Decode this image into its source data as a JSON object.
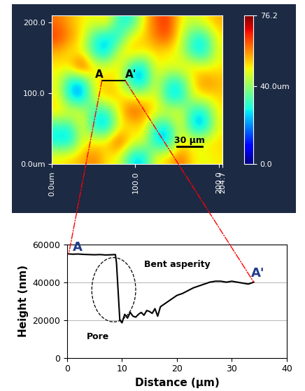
{
  "chart_data": [
    {
      "type": "heatmap",
      "cells": [
        [
          60,
          55,
          50,
          48,
          52,
          30,
          28,
          50,
          62,
          66,
          50,
          45,
          50,
          55
        ],
        [
          65,
          58,
          50,
          30,
          25,
          28,
          50,
          52,
          60,
          64,
          48,
          30,
          28,
          50
        ],
        [
          55,
          50,
          48,
          28,
          22,
          48,
          55,
          50,
          52,
          50,
          46,
          28,
          25,
          48
        ],
        [
          50,
          52,
          70,
          50,
          48,
          52,
          28,
          24,
          50,
          48,
          50,
          52,
          48,
          50
        ],
        [
          48,
          25,
          22,
          50,
          52,
          50,
          26,
          22,
          48,
          30,
          28,
          50,
          60,
          55
        ],
        [
          50,
          24,
          20,
          48,
          55,
          52,
          50,
          48,
          50,
          26,
          24,
          48,
          50,
          52
        ],
        [
          52,
          50,
          48,
          30,
          28,
          50,
          64,
          60,
          50,
          48,
          50,
          28,
          26,
          50
        ],
        [
          30,
          28,
          50,
          26,
          22,
          48,
          50,
          52,
          28,
          26,
          50,
          24,
          22,
          48
        ],
        [
          26,
          24,
          48,
          50,
          52,
          66,
          50,
          48,
          24,
          22,
          50,
          48,
          50,
          52
        ],
        [
          50,
          52,
          55,
          60,
          50,
          48,
          26,
          24,
          50,
          52,
          62,
          50,
          48,
          50
        ]
      ],
      "xlim": [
        0,
        204.7
      ],
      "ylim": [
        0,
        210
      ],
      "xticks": [
        {
          "value": 0,
          "label": "0.0um"
        },
        {
          "value": 100,
          "label": "100.0"
        },
        {
          "value": 200,
          "label": "200.0"
        },
        {
          "value": 204.7,
          "label": "204.7"
        }
      ],
      "yticks": [
        {
          "value": 0,
          "label": "0.0um"
        },
        {
          "value": 100,
          "label": "100.0"
        },
        {
          "value": 200,
          "label": "200.0"
        }
      ],
      "colorbar": {
        "range": [
          0,
          76.2
        ],
        "ticks": [
          {
            "value": 0,
            "label": "0.0"
          },
          {
            "value": 40,
            "label": "40.0um"
          },
          76.2
        ]
      },
      "annotations": [
        "A",
        "A'",
        "30 µm"
      ]
    },
    {
      "type": "line",
      "x": [
        0,
        1,
        2,
        3,
        4,
        5,
        6,
        7,
        8,
        8.8,
        9.0,
        9.6,
        10,
        10.5,
        11,
        11.5,
        12,
        12.5,
        13,
        13.5,
        14,
        14.5,
        15,
        15.5,
        16,
        16.5,
        17,
        18,
        19,
        20,
        21,
        22,
        23,
        24,
        25,
        26,
        27,
        28,
        29,
        30,
        31,
        32,
        33,
        34
      ],
      "values": [
        55000,
        54800,
        54900,
        54700,
        54600,
        54500,
        54600,
        54400,
        54500,
        54600,
        50000,
        20000,
        18500,
        23000,
        21000,
        24000,
        22000,
        21500,
        23000,
        24000,
        22500,
        25000,
        24500,
        23500,
        26000,
        22000,
        27000,
        29000,
        31000,
        33000,
        34000,
        35500,
        37000,
        38000,
        39000,
        40000,
        40500,
        40500,
        40000,
        40500,
        40000,
        39500,
        39000,
        40000
      ],
      "color": "#000000",
      "xlabel": "Distance (µm)",
      "ylabel": "Height (nm)",
      "xlim": [
        0,
        40
      ],
      "xticks": [
        0,
        10,
        20,
        30,
        40
      ],
      "ylim": [
        0,
        60000
      ],
      "yticks": [
        0,
        20000,
        40000,
        60000
      ],
      "grid": true,
      "annotations": [
        "A",
        "A'",
        "Bent asperity",
        "Pore"
      ]
    }
  ]
}
